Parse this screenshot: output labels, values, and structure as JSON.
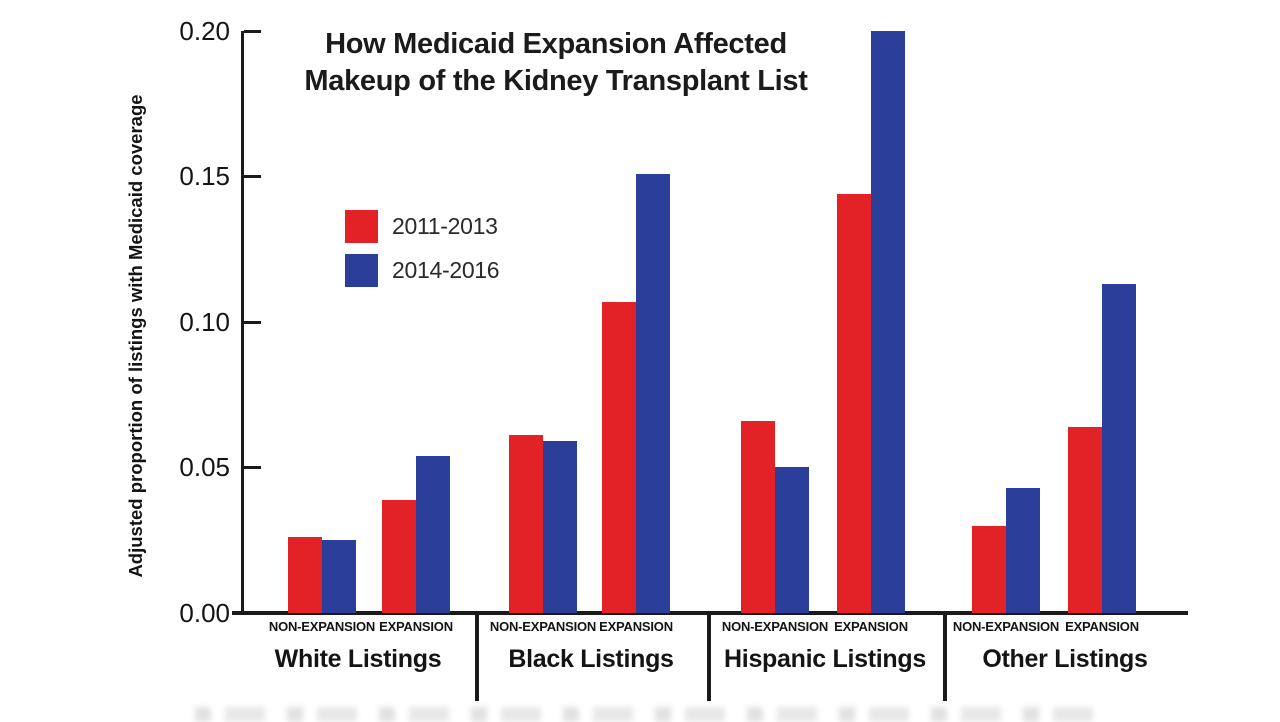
{
  "title": {
    "line1": "How Medicaid Expansion Affected",
    "line2": "Makeup of the Kidney Transplant List"
  },
  "legend": [
    {
      "label": "2011-2013",
      "color": "#e32228"
    },
    {
      "label": "2014-2016",
      "color": "#2b3e99"
    }
  ],
  "y_axis": {
    "label": "Adjusted proportion of listings with Medicaid coverage",
    "tick_labels": [
      "0.20",
      "0.15",
      "0.10",
      "0.05",
      "0.00"
    ]
  },
  "chart_data": {
    "type": "bar",
    "title": "How Medicaid Expansion Affected Makeup of the Kidney Transplant List",
    "xlabel": "",
    "ylabel": "Adjusted proportion of listings with Medicaid coverage",
    "ylim": [
      0,
      0.2
    ],
    "yticks": [
      0.2,
      0.15,
      0.1,
      0.05,
      0.0
    ],
    "grid": false,
    "legend_position": "upper-left-inside",
    "groups": [
      "White Listings",
      "Black Listings",
      "Hispanic Listings",
      "Other Listings"
    ],
    "subcategories": [
      "NON-EXPANSION",
      "EXPANSION"
    ],
    "series": [
      {
        "name": "2011-2013",
        "color": "#e32228",
        "values": [
          [
            0.026,
            0.039
          ],
          [
            0.061,
            0.107
          ],
          [
            0.066,
            0.144
          ],
          [
            0.03,
            0.064
          ]
        ]
      },
      {
        "name": "2014-2016",
        "color": "#2b3e99",
        "values": [
          [
            0.025,
            0.054
          ],
          [
            0.059,
            0.151
          ],
          [
            0.05,
            0.2
          ],
          [
            0.043,
            0.113
          ]
        ]
      }
    ]
  }
}
